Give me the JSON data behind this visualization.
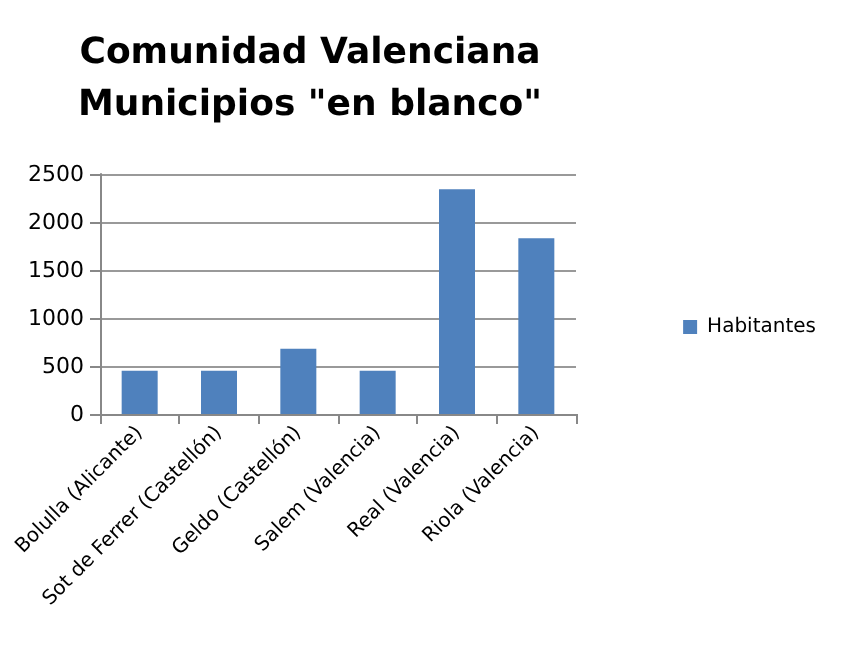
{
  "chart_data": {
    "type": "bar",
    "title": "Comunidad Valenciana\nMunicipios \"en blanco\"",
    "categories": [
      "Bolulla (Alicante)",
      "Sot de Ferrer (Castellón)",
      "Geldo (Castellón)",
      "Salem (Valencia)",
      "Real (Valencia)",
      "Riola (Valencia)"
    ],
    "series": [
      {
        "name": "Habitantes",
        "color": "#4f81bd",
        "values": [
          450,
          450,
          680,
          450,
          2340,
          1830
        ]
      }
    ],
    "ylim": [
      0,
      2500
    ],
    "yticks": [
      0,
      500,
      1000,
      1500,
      2000,
      2500
    ],
    "grid": "y",
    "legend": "right"
  }
}
